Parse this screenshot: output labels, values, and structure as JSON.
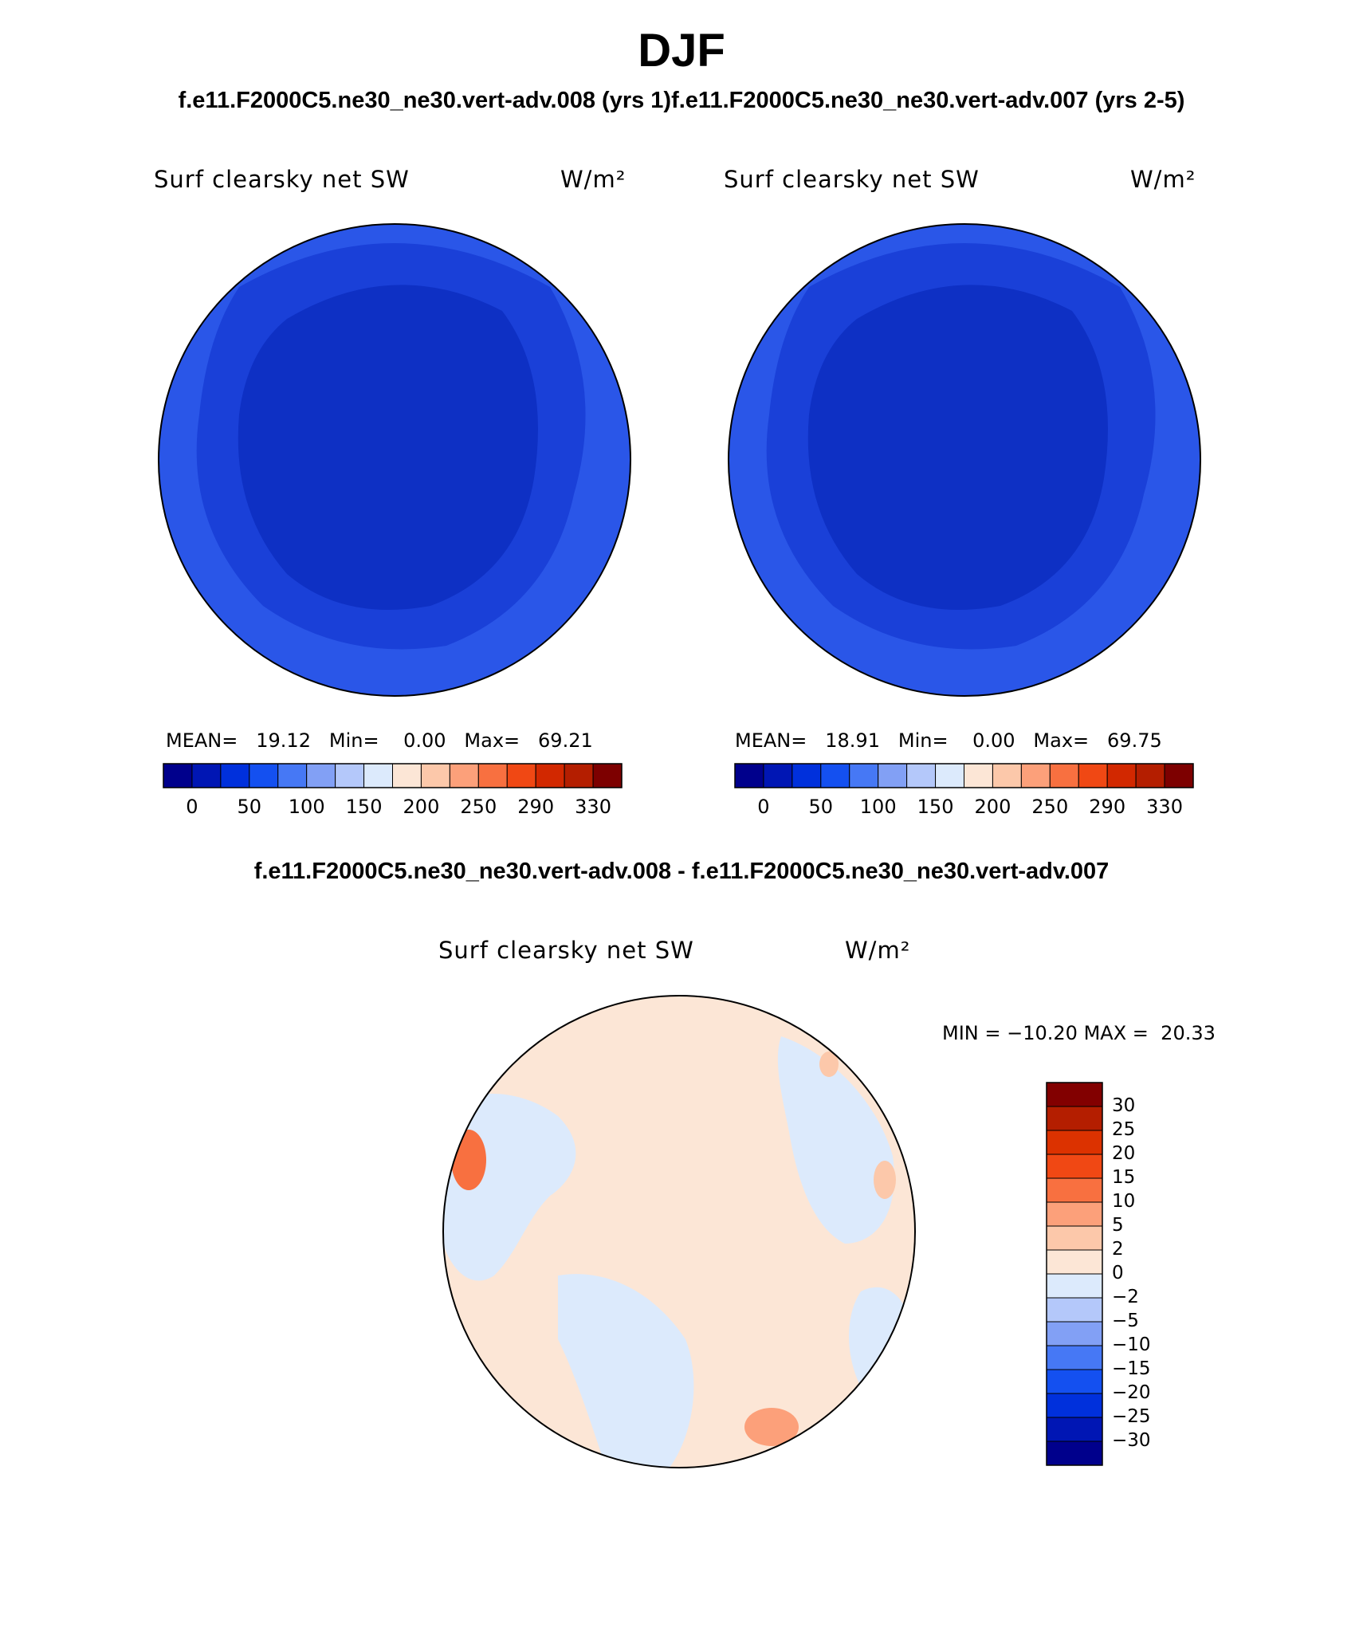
{
  "season": "DJF",
  "top_subtitle_left": "f.e11.F2000C5.ne30_ne30.vert-adv.008 (yrs 1)",
  "top_subtitle_right": "f.e11.F2000C5.ne30_ne30.vert-adv.007 (yrs 2-5)",
  "diff_subtitle": "f.e11.F2000C5.ne30_ne30.vert-adv.008 - f.e11.F2000C5.ne30_ne30.vert-adv.007",
  "chart_data": [
    {
      "type": "heatmap",
      "projection": "north polar stereographic",
      "variable": "Surf clearsky net SW",
      "units": "W/m²",
      "case": "f.e11.F2000C5.ne30_ne30.vert-adv.008 (yrs 1)",
      "stats": {
        "mean_label": "MEAN=",
        "mean": "19.12",
        "min_label": "Min=",
        "min": "0.00",
        "max_label": "Max=",
        "max": "69.21"
      },
      "levels": [
        "0",
        "50",
        "100",
        "150",
        "200",
        "250",
        "290",
        "330"
      ]
    },
    {
      "type": "heatmap",
      "projection": "north polar stereographic",
      "variable": "Surf clearsky net SW",
      "units": "W/m²",
      "case": "f.e11.F2000C5.ne30_ne30.vert-adv.007 (yrs 2-5)",
      "stats": {
        "mean_label": "MEAN=",
        "mean": "18.91",
        "min_label": "Min=",
        "min": "0.00",
        "max_label": "Max=",
        "max": "69.75"
      },
      "levels": [
        "0",
        "50",
        "100",
        "150",
        "200",
        "250",
        "290",
        "330"
      ]
    },
    {
      "type": "heatmap",
      "projection": "north polar stereographic",
      "variable": "Surf clearsky net SW",
      "units": "W/m²",
      "case": "difference",
      "stats": {
        "min_label": "MIN =",
        "min": "−10.20",
        "max_label": "MAX =",
        "max": "20.33"
      },
      "levels": [
        "30",
        "25",
        "20",
        "15",
        "10",
        "5",
        "2",
        "0",
        "−2",
        "−5",
        "−10",
        "−15",
        "−20",
        "−25",
        "−30"
      ]
    }
  ],
  "colors": {
    "abs_colorbar": [
      "#00008c",
      "#0016b4",
      "#0030dc",
      "#1450f0",
      "#4678f5",
      "#82a0f5",
      "#b4c8fa",
      "#dceafc",
      "#fce6d6",
      "#fcc8aa",
      "#fca07a",
      "#f87040",
      "#f04814",
      "#d22800",
      "#b41e00",
      "#7d0000"
    ],
    "diff_colorbar": [
      "#820000",
      "#b41e00",
      "#dc3200",
      "#f04814",
      "#f87040",
      "#fca07a",
      "#fcc8aa",
      "#fce6d6",
      "#dceafc",
      "#b4c8fa",
      "#82a0f5",
      "#4678f5",
      "#1450f0",
      "#0030dc",
      "#0016b4",
      "#00008c"
    ],
    "map_abs_outer": "#2a56e8",
    "map_abs_mid": "#1a40d8",
    "map_abs_inner": "#0e30c4",
    "map_diff_base": "#fce6d6",
    "map_diff_neg": "#dceafc"
  }
}
